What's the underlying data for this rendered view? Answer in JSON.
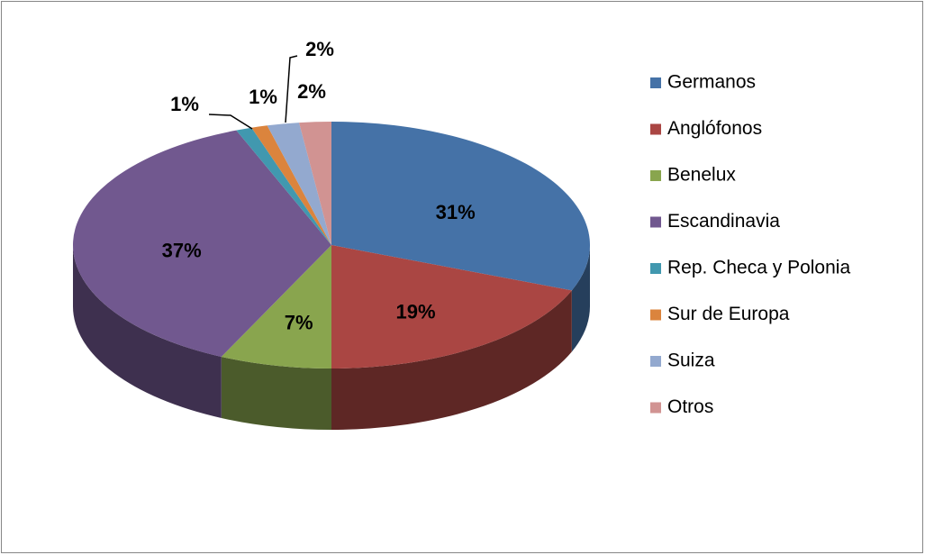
{
  "chart_data": {
    "type": "pie",
    "categories": [
      "Germanos",
      "Anglófonos",
      "Benelux",
      "Escandinavia",
      "Rep. Checa y Polonia",
      "Sur de Europa",
      "Suiza",
      "Otros"
    ],
    "values": [
      31,
      19,
      7,
      37,
      1,
      1,
      2,
      2
    ],
    "value_labels": [
      "31%",
      "19%",
      "7%",
      "37%",
      "1%",
      "1%",
      "2%",
      "2%"
    ],
    "colors": [
      "#4572a7",
      "#aa4643",
      "#89a54e",
      "#71588f",
      "#4198af",
      "#db843d",
      "#93a9cf",
      "#d19392"
    ],
    "legend": "right"
  }
}
